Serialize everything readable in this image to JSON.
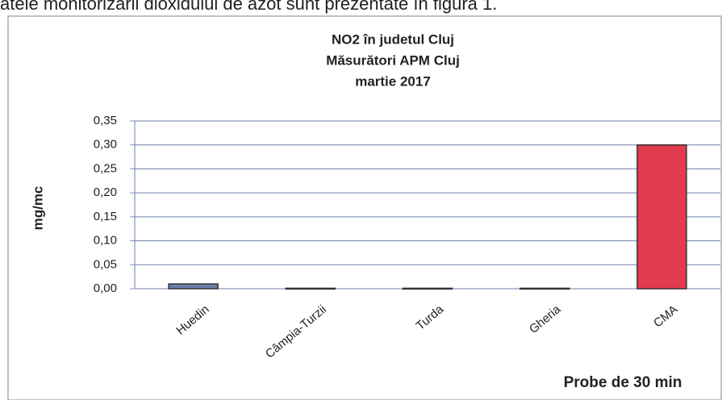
{
  "caption": "atele monitorizării dioxidului de azot sunt prezentate în figura 1.",
  "chart_data": {
    "type": "bar",
    "title": [
      "NO2 în judetul Cluj",
      "Măsurători APM Cluj",
      "martie 2017"
    ],
    "y_label": "mg/mc",
    "x_label": "Probe de 30 min",
    "categories": [
      "Huedin",
      "Câmpia-Turzii",
      "Turda",
      "Gheria",
      "CMA"
    ],
    "values": [
      0.01,
      0.001,
      0.001,
      0.001,
      0.3
    ],
    "colors": [
      "#6a7fa8",
      "#8a93a8",
      "#8a93a8",
      "#8a93a8",
      "#e23a4e"
    ],
    "ylim": [
      0,
      0.35
    ],
    "yticks": [
      {
        "value": 0,
        "label": "0,00"
      },
      {
        "value": 0.05,
        "label": "0,05"
      },
      {
        "value": 0.1,
        "label": "0,10"
      },
      {
        "value": 0.15,
        "label": "0,15"
      },
      {
        "value": 0.2,
        "label": "0,20"
      },
      {
        "value": 0.25,
        "label": "0,25"
      },
      {
        "value": 0.3,
        "label": "0,30"
      },
      {
        "value": 0.35,
        "label": "0,35"
      }
    ],
    "grid": true
  }
}
